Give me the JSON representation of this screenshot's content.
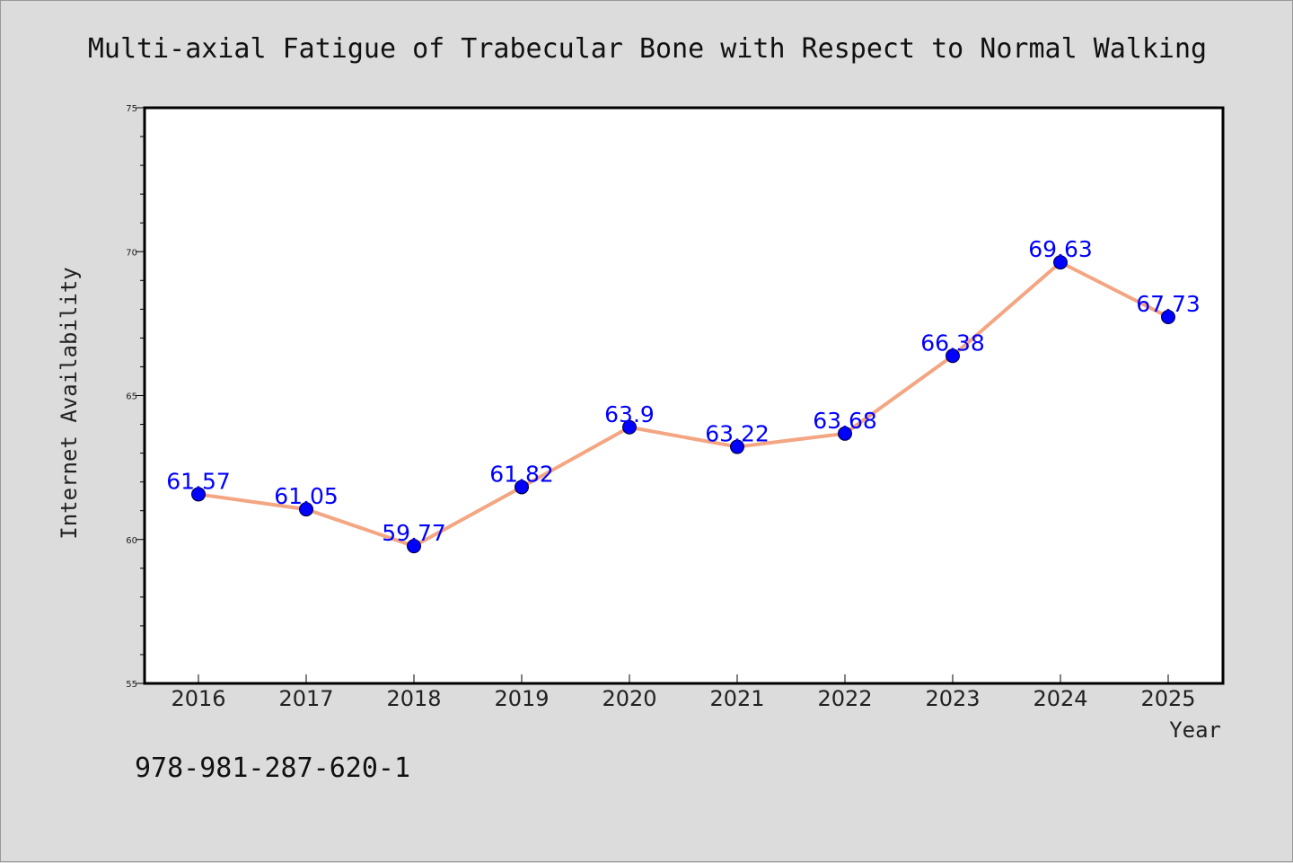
{
  "colors": {
    "background": "#dcdcdc",
    "plot_background": "#ffffff",
    "line": "#f4a582",
    "marker": "#0000ff",
    "data_label": "#0000ff"
  },
  "footnote": "978-981-287-620-1",
  "chart_data": {
    "type": "line",
    "title": "Multi-axial Fatigue of Trabecular Bone with Respect to Normal Walking",
    "xlabel": "Year",
    "ylabel": "Internet Availability",
    "categories": [
      "2016",
      "2017",
      "2018",
      "2019",
      "2020",
      "2021",
      "2022",
      "2023",
      "2024",
      "2025"
    ],
    "series": [
      {
        "values": [
          61.57,
          61.05,
          59.77,
          61.82,
          63.9,
          63.22,
          63.68,
          66.38,
          69.63,
          67.73
        ]
      }
    ],
    "data_labels": [
      "61.57",
      "61.05",
      "59.77",
      "61.82",
      "63.9",
      "63.22",
      "63.68",
      "66.38",
      "69.63",
      "67.73"
    ],
    "yticks": [
      55,
      60,
      65,
      70,
      75
    ],
    "ylim": [
      55,
      75
    ],
    "grid": false,
    "legend": "none"
  }
}
